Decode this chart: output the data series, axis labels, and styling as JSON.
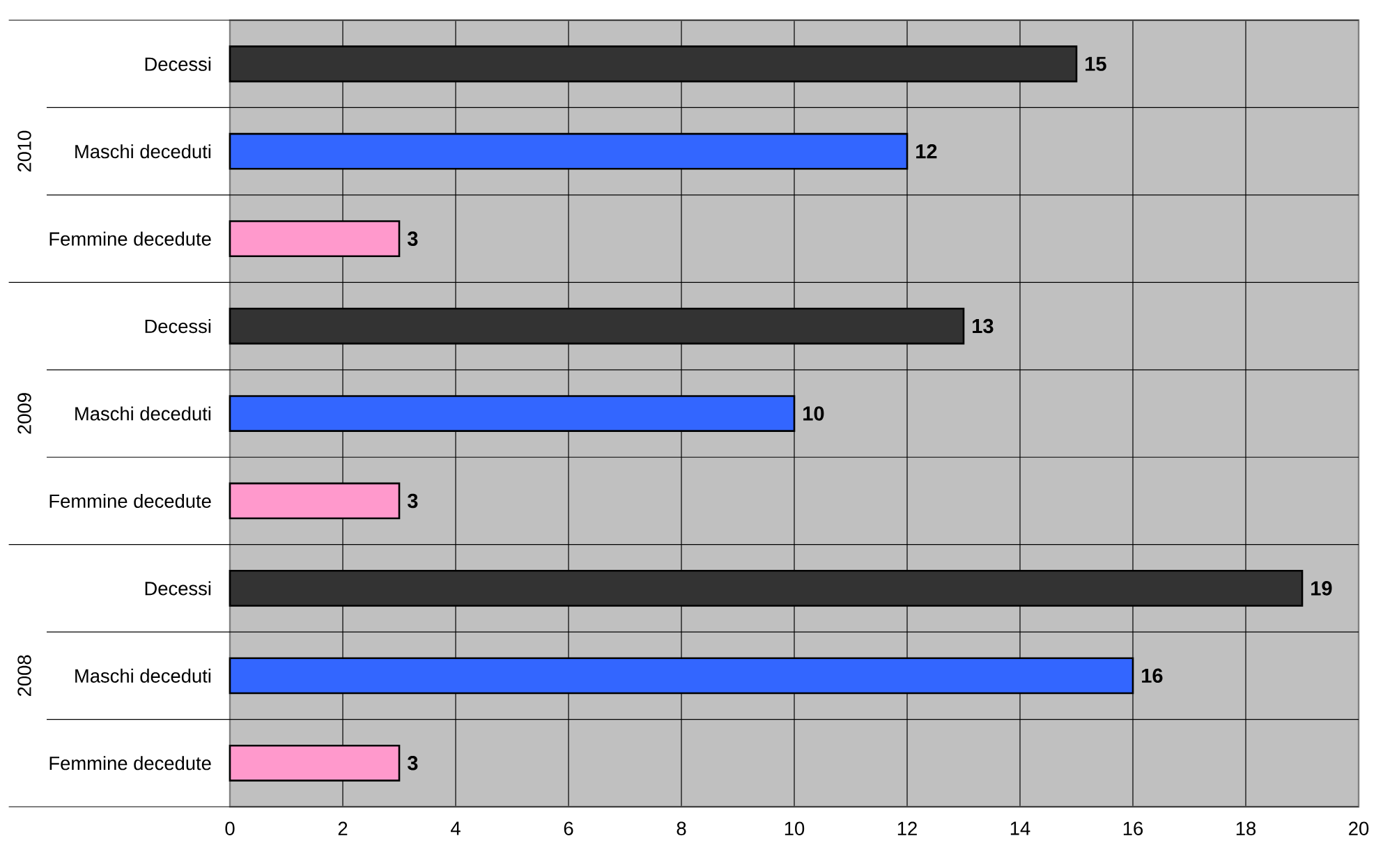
{
  "chart_data": {
    "type": "bar",
    "orientation": "horizontal",
    "categories": [
      "Decessi",
      "Maschi deceduti",
      "Femmine decedute",
      "Decessi",
      "Maschi deceduti",
      "Femmine decedute",
      "Decessi",
      "Maschi deceduti",
      "Femmine decedute"
    ],
    "values": [
      15,
      12,
      3,
      13,
      10,
      3,
      19,
      16,
      3
    ],
    "colors": [
      "#333333",
      "#3366ff",
      "#ff99cc",
      "#333333",
      "#3366ff",
      "#ff99cc",
      "#333333",
      "#3366ff",
      "#ff99cc"
    ],
    "xlim": [
      0,
      20
    ],
    "xticks": [
      0,
      2,
      4,
      6,
      8,
      10,
      12,
      14,
      16,
      18,
      20
    ],
    "grid": true,
    "data_labels": true,
    "annotations": [
      "2010",
      "2009",
      "2008"
    ]
  }
}
